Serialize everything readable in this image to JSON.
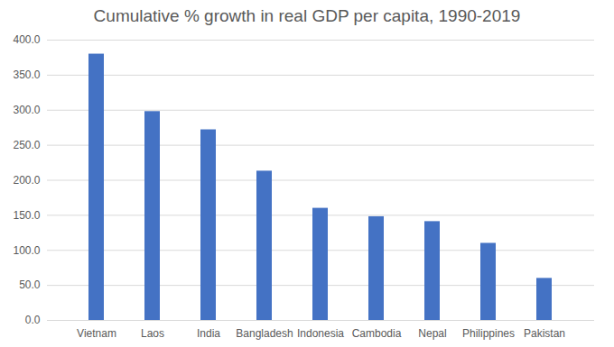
{
  "chart_data": {
    "type": "bar",
    "title": "Cumulative % growth in real GDP per capita, 1990-2019",
    "categories": [
      "Vietnam",
      "Laos",
      "India",
      "Bangladesh",
      "Indonesia",
      "Cambodia",
      "Nepal",
      "Philippines",
      "Pakistan"
    ],
    "values": [
      380,
      298,
      272,
      213,
      160,
      148,
      141,
      110,
      60
    ],
    "color": "#4472c4",
    "ylim": [
      0,
      400
    ],
    "yticks": [
      {
        "value": 0,
        "label": "0.0"
      },
      {
        "value": 50,
        "label": "50.0"
      },
      {
        "value": 100,
        "label": "100.0"
      },
      {
        "value": 150,
        "label": "150.0"
      },
      {
        "value": 200,
        "label": "200.0"
      },
      {
        "value": 250,
        "label": "250.0"
      },
      {
        "value": 300,
        "label": "300.0"
      },
      {
        "value": 350,
        "label": "350.0"
      },
      {
        "value": 400,
        "label": "400.0"
      }
    ],
    "grid": true
  }
}
